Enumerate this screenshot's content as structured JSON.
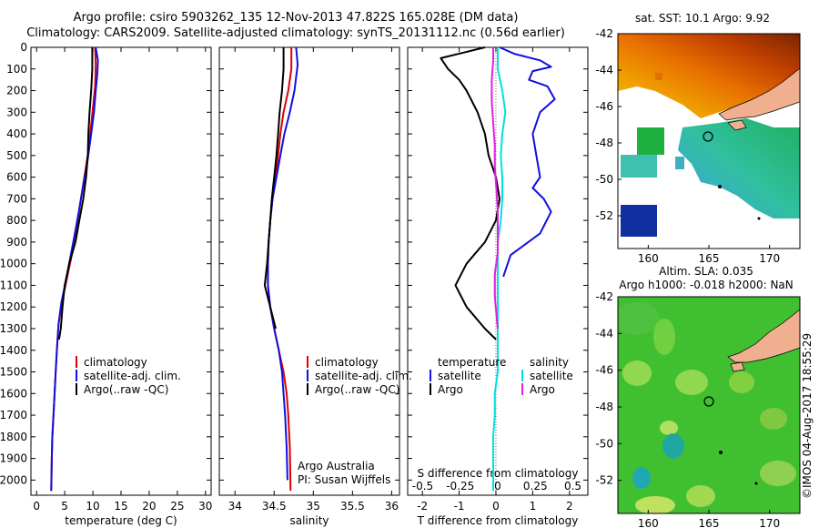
{
  "header": {
    "title_line1": "Argo profile: csiro 5903262_135 12-Nov-2013 47.822S 165.028E (DM data)",
    "title_line2": "Climatology: CARS2009. Satellite-adjusted climatology: synTS_20131112.nc (0.56d earlier)"
  },
  "colors": {
    "climatology": "#e00000",
    "satellite": "#1010e0",
    "argo": "#000000",
    "s_satellite": "#00e0e0",
    "s_argo": "#e020e0",
    "land": "#f0b090",
    "marker": "#000000"
  },
  "labels": {
    "temp_xlabel": "temperature (deg C)",
    "sal_xlabel": "salinity",
    "diff_xlabel_bottom": "T difference from climatology",
    "diff_xlabel_top": "S difference from climatology",
    "legend": [
      "climatology",
      "satellite-adj. clim.",
      "Argo(..raw -QC)"
    ],
    "diff_legend_temp_title": "temperature",
    "diff_legend_sal_title": "salinity",
    "diff_legend_items": [
      "satellite",
      "Argo"
    ],
    "argo_australia": "Argo Australia",
    "pi": "PI: Susan Wijffels",
    "sst_title": "sat. SST: 10.1  Argo: 9.92",
    "sla_title1": "Altim. SLA: 0.035",
    "sla_title2": "Argo h1000: -0.018 h2000: NaN",
    "side_stamp": "©IMOS 04-Aug-2017 18:55:29"
  },
  "chart_data": [
    {
      "type": "line",
      "name": "temperature",
      "xlabel": "temperature (deg C)",
      "ylabel": "",
      "xlim": [
        -1,
        31
      ],
      "ylim": [
        2070,
        0
      ],
      "xticks": [
        0,
        5,
        10,
        15,
        20,
        25,
        30
      ],
      "yticks": [
        0,
        100,
        200,
        300,
        400,
        500,
        600,
        700,
        800,
        900,
        1000,
        1100,
        1200,
        1300,
        1400,
        1500,
        1600,
        1700,
        1800,
        1900,
        2000
      ],
      "series": [
        {
          "name": "climatology",
          "color": "#e00000",
          "x": [
            10.4,
            10.5,
            10.4,
            10.0,
            9.6,
            9.2,
            8.6,
            8.0,
            7.4,
            6.8,
            6.1,
            5.3,
            4.5,
            3.9,
            3.6,
            3.4,
            3.2,
            3.0,
            2.8,
            2.7,
            2.6
          ],
          "y": [
            0,
            80,
            180,
            280,
            380,
            480,
            580,
            680,
            780,
            880,
            980,
            1080,
            1180,
            1280,
            1400,
            1500,
            1600,
            1700,
            1800,
            1900,
            2050
          ]
        },
        {
          "name": "satellite-adj. clim.",
          "color": "#1010e0",
          "x": [
            10.5,
            10.9,
            10.8,
            10.5,
            10.2,
            9.6,
            8.9,
            8.2,
            7.5,
            6.8,
            6.0,
            5.2,
            4.4,
            3.9,
            3.6,
            3.4,
            3.2,
            3.0,
            2.8,
            2.7,
            2.6
          ],
          "y": [
            0,
            60,
            120,
            200,
            300,
            420,
            550,
            650,
            760,
            860,
            970,
            1080,
            1180,
            1280,
            1400,
            1500,
            1600,
            1700,
            1800,
            1900,
            2050
          ]
        },
        {
          "name": "Argo(..raw -QC)",
          "color": "#000000",
          "x": [
            9.9,
            9.9,
            9.7,
            9.4,
            9.2,
            9.1,
            8.8,
            8.3,
            7.6,
            6.9,
            5.8,
            5.0,
            4.6,
            4.3,
            4.0
          ],
          "y": [
            0,
            100,
            200,
            300,
            400,
            500,
            600,
            700,
            800,
            900,
            1000,
            1100,
            1200,
            1300,
            1350
          ]
        }
      ]
    },
    {
      "type": "line",
      "name": "salinity",
      "xlabel": "salinity",
      "xlim": [
        33.8,
        36.1
      ],
      "ylim": [
        2070,
        0
      ],
      "xticks": [
        34,
        34.5,
        35,
        35.5,
        36
      ],
      "series": [
        {
          "name": "climatology",
          "color": "#e00000",
          "x": [
            34.72,
            34.72,
            34.68,
            34.62,
            34.58,
            34.55,
            34.52,
            34.48,
            34.45,
            34.43,
            34.42,
            34.42,
            34.45,
            34.5,
            34.56,
            34.62,
            34.66,
            34.68,
            34.7,
            34.71
          ],
          "y": [
            0,
            100,
            200,
            300,
            400,
            500,
            600,
            700,
            800,
            900,
            1000,
            1100,
            1200,
            1300,
            1400,
            1500,
            1600,
            1700,
            1850,
            2050
          ]
        },
        {
          "name": "satellite-adj. clim.",
          "color": "#1010e0",
          "x": [
            34.78,
            34.8,
            34.76,
            34.7,
            34.63,
            34.58,
            34.53,
            34.48,
            34.45,
            34.43,
            34.42,
            34.42,
            34.45,
            34.5,
            34.56,
            34.6,
            34.62,
            34.64,
            34.66,
            34.67
          ],
          "y": [
            0,
            80,
            200,
            300,
            400,
            500,
            600,
            700,
            800,
            900,
            1000,
            1100,
            1200,
            1300,
            1400,
            1500,
            1600,
            1700,
            1850,
            2000
          ]
        },
        {
          "name": "Argo(..raw -QC)",
          "color": "#000000",
          "x": [
            34.62,
            34.62,
            34.6,
            34.57,
            34.55,
            34.53,
            34.5,
            34.47,
            34.45,
            34.43,
            34.41,
            34.38,
            34.45,
            34.52
          ],
          "y": [
            0,
            100,
            200,
            300,
            400,
            500,
            600,
            700,
            800,
            900,
            1000,
            1100,
            1200,
            1300
          ]
        }
      ]
    },
    {
      "type": "line",
      "name": "difference",
      "xlabel": "T difference from climatology",
      "xlabel_top": "S difference from climatology",
      "xlim": [
        -2.4,
        2.5
      ],
      "xlim_top": [
        -0.6,
        0.6
      ],
      "ylim": [
        2070,
        0
      ],
      "xticks": [
        -2,
        -1,
        0,
        1,
        2
      ],
      "xticks_top": [
        -0.5,
        -0.25,
        0,
        0.25,
        0.5
      ],
      "series": [
        {
          "name": "temperature satellite",
          "color": "#1010e0",
          "x": [
            0.1,
            0.5,
            1.2,
            1.5,
            1.0,
            0.9,
            1.4,
            1.6,
            1.2,
            1.0,
            1.1,
            1.2,
            1.0,
            1.3,
            1.5,
            1.2,
            0.4,
            0.2
          ],
          "y": [
            0,
            30,
            60,
            90,
            110,
            150,
            180,
            240,
            300,
            400,
            500,
            600,
            650,
            700,
            760,
            860,
            960,
            1060
          ]
        },
        {
          "name": "temperature Argo",
          "color": "#000000",
          "x": [
            -0.3,
            -1.5,
            -1.3,
            -1.0,
            -0.8,
            -0.5,
            -0.3,
            -0.2,
            0.0,
            0.1,
            0.0,
            -0.3,
            -0.8,
            -1.1,
            -0.8,
            -0.3,
            0.0
          ],
          "y": [
            0,
            50,
            100,
            150,
            200,
            300,
            400,
            500,
            600,
            700,
            800,
            900,
            1000,
            1100,
            1200,
            1300,
            1350
          ]
        },
        {
          "name": "salinity satellite",
          "color": "#00e0e0",
          "x": [
            0.0,
            0.0,
            0.03,
            0.05,
            0.03,
            0.02,
            0.03,
            0.03,
            0.02,
            0.0,
            0.0,
            0.0,
            0.0,
            0.0,
            0.0,
            0.0,
            -0.02,
            -0.02,
            -0.03,
            -0.03,
            -0.03
          ],
          "y": [
            0,
            100,
            200,
            300,
            400,
            500,
            600,
            700,
            800,
            900,
            1000,
            1100,
            1200,
            1300,
            1400,
            1500,
            1600,
            1700,
            1800,
            1900,
            2050
          ]
        },
        {
          "name": "salinity Argo",
          "color": "#e020e0",
          "x": [
            -0.03,
            -0.03,
            -0.04,
            -0.04,
            -0.03,
            -0.02,
            -0.02,
            -0.01,
            0.0,
            0.0,
            0.0,
            -0.02,
            -0.02,
            0.0
          ],
          "y": [
            0,
            60,
            150,
            250,
            350,
            450,
            550,
            650,
            750,
            850,
            950,
            1050,
            1150,
            1300
          ]
        }
      ]
    },
    {
      "type": "heatmap",
      "name": "sat. SST map",
      "title": "sat. SST: 10.1  Argo: 9.92",
      "xlim": [
        157.5,
        172.5
      ],
      "ylim": [
        -53.8,
        -42
      ],
      "xticks": [
        160,
        165,
        170
      ],
      "yticks": [
        -42,
        -44,
        -46,
        -48,
        -50,
        -52
      ],
      "argo_position": [
        165.028,
        -47.822
      ]
    },
    {
      "type": "heatmap",
      "name": "altimetry SLA map",
      "title": "Altim. SLA: 0.035",
      "xlim": [
        157.5,
        172.5
      ],
      "ylim": [
        -53.8,
        -42
      ],
      "xticks": [
        160,
        165,
        170
      ],
      "yticks": [
        -42,
        -44,
        -46,
        -48,
        -50,
        -52
      ],
      "argo_position": [
        165.028,
        -47.822
      ]
    }
  ]
}
